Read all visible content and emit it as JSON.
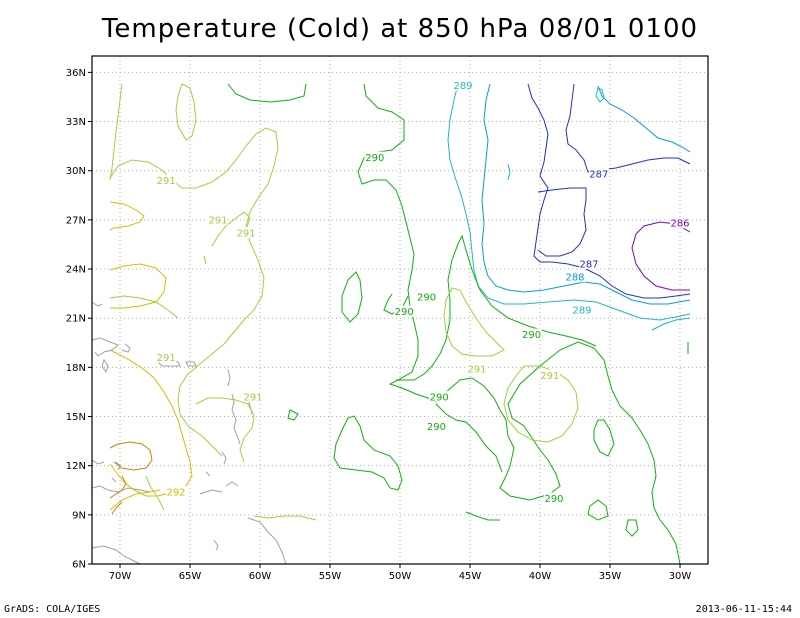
{
  "title": "Temperature (Cold) at 850 hPa 08/01 0100",
  "footer": {
    "left": "GrADS: COLA/IGES",
    "right": "2013-06-11-15:44"
  },
  "colors": {
    "c286": "#8000c0",
    "c287": "#2030c0",
    "c288": "#00a0d8",
    "c289": "#20b8c0",
    "c290": "#10b010",
    "c291": "#a0d040",
    "c292": "#d0c000",
    "c293": "#d08000",
    "coast": "#a0a0a0",
    "grid": "#b0b0b0"
  },
  "chart_data": {
    "type": "contour",
    "title": "Temperature (Cold) at 850 hPa 08/01 0100",
    "x_ticks": [
      "70W",
      "65W",
      "60W",
      "55W",
      "50W",
      "45W",
      "40W",
      "35W",
      "30W"
    ],
    "x_tick_values": [
      -70,
      -65,
      -60,
      -55,
      -50,
      -45,
      -40,
      -35,
      -30
    ],
    "y_ticks": [
      "6N",
      "9N",
      "12N",
      "15N",
      "18N",
      "21N",
      "24N",
      "27N",
      "30N",
      "33N",
      "36N"
    ],
    "y_tick_values": [
      6,
      9,
      12,
      15,
      18,
      21,
      24,
      27,
      30,
      33,
      36
    ],
    "xlim": [
      -72,
      -28
    ],
    "ylim": [
      6,
      37
    ],
    "grid": true,
    "contour_levels": [
      286,
      287,
      288,
      289,
      290,
      291,
      292
    ],
    "contour_labels": [
      {
        "text": "289",
        "lon": -45.5,
        "lat": 35.2,
        "level": 289
      },
      {
        "text": "290",
        "lon": -51.8,
        "lat": 30.8,
        "level": 290
      },
      {
        "text": "291",
        "lon": -66.7,
        "lat": 29.4,
        "level": 291
      },
      {
        "text": "287",
        "lon": -35.8,
        "lat": 29.8,
        "level": 287
      },
      {
        "text": "291",
        "lon": -63.0,
        "lat": 27.0,
        "level": 291
      },
      {
        "text": "291",
        "lon": -61.0,
        "lat": 26.2,
        "level": 291
      },
      {
        "text": "286",
        "lon": -30.0,
        "lat": 26.8,
        "level": 286
      },
      {
        "text": "287",
        "lon": -36.5,
        "lat": 24.3,
        "level": 287
      },
      {
        "text": "288",
        "lon": -37.5,
        "lat": 23.5,
        "level": 288
      },
      {
        "text": "290",
        "lon": -48.1,
        "lat": 22.3,
        "level": 290
      },
      {
        "text": "289",
        "lon": -37.0,
        "lat": 21.5,
        "level": 289
      },
      {
        "text": "290",
        "lon": -49.7,
        "lat": 21.4,
        "level": 290
      },
      {
        "text": "290",
        "lon": -40.6,
        "lat": 20.0,
        "level": 290
      },
      {
        "text": "291",
        "lon": -66.7,
        "lat": 18.6,
        "level": 291
      },
      {
        "text": "291",
        "lon": -44.5,
        "lat": 17.9,
        "level": 291
      },
      {
        "text": "291",
        "lon": -39.3,
        "lat": 17.5,
        "level": 291
      },
      {
        "text": "291",
        "lon": -60.5,
        "lat": 16.2,
        "level": 291
      },
      {
        "text": "290",
        "lon": -47.2,
        "lat": 16.2,
        "level": 290
      },
      {
        "text": "290",
        "lon": -47.4,
        "lat": 14.4,
        "level": 290
      },
      {
        "text": "292",
        "lon": -66.0,
        "lat": 10.4,
        "level": 292
      },
      {
        "text": "290",
        "lon": -39.0,
        "lat": 10.0,
        "level": 290
      }
    ]
  }
}
